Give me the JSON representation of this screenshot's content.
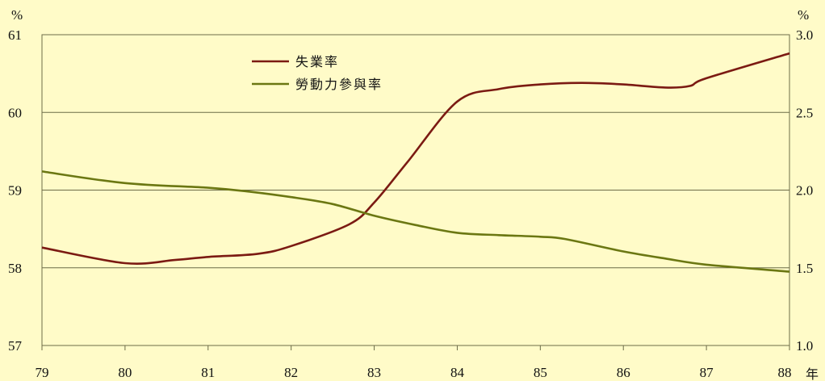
{
  "chart_data": {
    "type": "line",
    "x": [
      79,
      80,
      81,
      82,
      83,
      84,
      85,
      86,
      87,
      88
    ],
    "x_unit": "年",
    "xlim": [
      79,
      88
    ],
    "left_axis": {
      "unit": "%",
      "ylim": [
        57,
        61
      ],
      "ticks": [
        "57",
        "58",
        "59",
        "60",
        "61"
      ]
    },
    "right_axis": {
      "unit": "%",
      "ylim": [
        1.0,
        3.0
      ],
      "ticks": [
        "1.0",
        "1.5",
        "2.0",
        "2.5",
        "3.0"
      ]
    },
    "x_ticks": [
      "79",
      "80",
      "81",
      "82",
      "83",
      "84",
      "85",
      "86",
      "87",
      "88"
    ],
    "series": [
      {
        "name": "失業率",
        "axis": "right",
        "color": "#7B1A12",
        "points": [
          [
            79,
            1.63
          ],
          [
            80,
            1.53
          ],
          [
            80.6,
            1.55
          ],
          [
            81,
            1.57
          ],
          [
            81.6,
            1.59
          ],
          [
            82,
            1.64
          ],
          [
            82.7,
            1.78
          ],
          [
            83,
            1.92
          ],
          [
            83.4,
            2.18
          ],
          [
            84,
            2.57
          ],
          [
            84.5,
            2.65
          ],
          [
            85,
            2.68
          ],
          [
            85.5,
            2.69
          ],
          [
            86,
            2.68
          ],
          [
            86.5,
            2.66
          ],
          [
            86.8,
            2.67
          ],
          [
            87,
            2.72
          ],
          [
            88,
            2.88
          ]
        ]
      },
      {
        "name": "勞動力參與率",
        "axis": "left",
        "color": "#6B7712",
        "points": [
          [
            79,
            59.24
          ],
          [
            80,
            59.09
          ],
          [
            81,
            59.03
          ],
          [
            81.5,
            58.98
          ],
          [
            82,
            58.91
          ],
          [
            82.5,
            58.82
          ],
          [
            83,
            58.67
          ],
          [
            83.5,
            58.55
          ],
          [
            84,
            58.45
          ],
          [
            84.5,
            58.42
          ],
          [
            85,
            58.4
          ],
          [
            85.3,
            58.37
          ],
          [
            86,
            58.21
          ],
          [
            86.5,
            58.12
          ],
          [
            87,
            58.04
          ],
          [
            88,
            57.95
          ]
        ]
      }
    ],
    "legend": "top-center",
    "grid": "horizontal"
  }
}
